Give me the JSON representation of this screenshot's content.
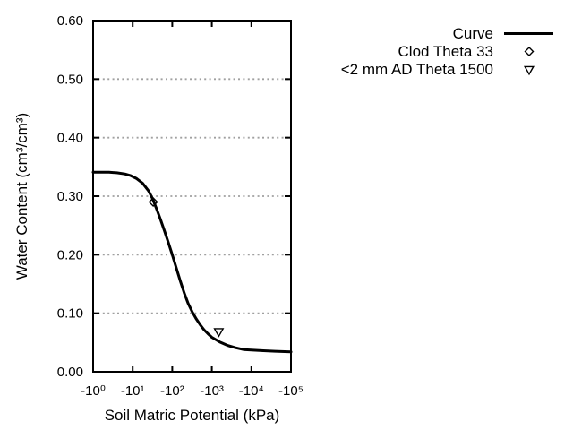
{
  "window": {
    "background": "#ffffff"
  },
  "colors": {
    "foreground": "#000000",
    "grid": "#a0a0a0",
    "marker_fill": "none"
  },
  "chart_data": {
    "type": "line",
    "title": "",
    "xlabel": "Soil Matric Potential (kPa)",
    "ylabel": "Water Content (cm³/cm³)",
    "x_scale": "log10-of-negative-kPa",
    "x_decade_range": [
      0,
      5
    ],
    "x_ticks": [
      "-10⁰",
      "-10¹",
      "-10²",
      "-10³",
      "-10⁴",
      "-10⁵"
    ],
    "ylim": [
      0.0,
      0.6
    ],
    "y_ticks": [
      "0.00",
      "0.10",
      "0.20",
      "0.30",
      "0.40",
      "0.50",
      "0.60"
    ],
    "grid": {
      "horizontal": true,
      "vertical": false,
      "style": "dotted"
    },
    "legend": {
      "position": "top-right",
      "entries": [
        {
          "label": "Curve",
          "sample": "line"
        },
        {
          "label": "Clod Theta 33",
          "sample": "diamond-open"
        },
        {
          "label": "<2 mm AD Theta 1500",
          "sample": "triangle-down-open"
        }
      ]
    },
    "series": [
      {
        "name": "Curve",
        "type": "line",
        "points_log10negkPa_theta": [
          [
            0.0,
            0.341
          ],
          [
            0.2,
            0.341
          ],
          [
            0.4,
            0.341
          ],
          [
            0.6,
            0.34
          ],
          [
            0.8,
            0.338
          ],
          [
            0.95,
            0.335
          ],
          [
            1.1,
            0.33
          ],
          [
            1.25,
            0.322
          ],
          [
            1.4,
            0.309
          ],
          [
            1.5,
            0.296
          ],
          [
            1.6,
            0.279
          ],
          [
            1.7,
            0.261
          ],
          [
            1.8,
            0.241
          ],
          [
            1.9,
            0.221
          ],
          [
            2.0,
            0.2
          ],
          [
            2.1,
            0.178
          ],
          [
            2.2,
            0.156
          ],
          [
            2.3,
            0.135
          ],
          [
            2.4,
            0.117
          ],
          [
            2.5,
            0.103
          ],
          [
            2.6,
            0.091
          ],
          [
            2.7,
            0.081
          ],
          [
            2.8,
            0.072
          ],
          [
            2.9,
            0.065
          ],
          [
            3.0,
            0.059
          ],
          [
            3.2,
            0.051
          ],
          [
            3.4,
            0.045
          ],
          [
            3.6,
            0.041
          ],
          [
            3.8,
            0.038
          ],
          [
            4.0,
            0.037
          ],
          [
            4.3,
            0.036
          ],
          [
            4.6,
            0.035
          ],
          [
            5.0,
            0.034
          ]
        ]
      },
      {
        "name": "Clod Theta 33",
        "type": "scatter",
        "marker": "diamond-open",
        "points_log10negkPa_theta": [
          [
            1.519,
            0.29
          ]
        ],
        "approx_point_kPa_theta": [
          -33,
          0.29
        ]
      },
      {
        "name": "<2 mm AD Theta 1500",
        "type": "scatter",
        "marker": "triangle-down-open",
        "points_log10negkPa_theta": [
          [
            3.176,
            0.068
          ]
        ],
        "approx_point_kPa_theta": [
          -1500,
          0.068
        ]
      }
    ]
  }
}
